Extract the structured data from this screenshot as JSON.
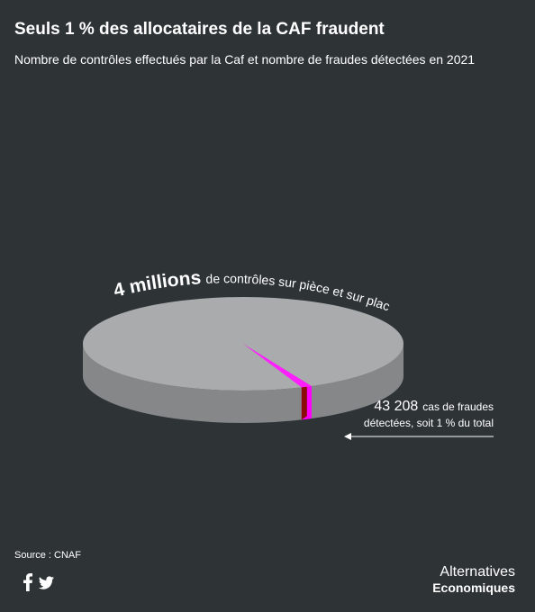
{
  "chart_data": {
    "type": "pie3d",
    "title": "Seuls 1 % des allocataires de la CAF fraudent",
    "subtitle": "Nombre de contrôles effectués par la Caf et nombre de fraudes détectées en 2021",
    "slices": [
      {
        "name": "de contrôles sur pièce et sur place",
        "value": 4000000,
        "value_label": "4 millions",
        "color": "#a9abac"
      },
      {
        "name": "cas de fraudes",
        "note": "détectées, soit 1 % du total",
        "value": 43208,
        "value_label": "43 208",
        "color": "#ff1fff"
      }
    ],
    "source": "Source : CNAF",
    "brand": [
      "Alternatives",
      "Economiques"
    ]
  }
}
